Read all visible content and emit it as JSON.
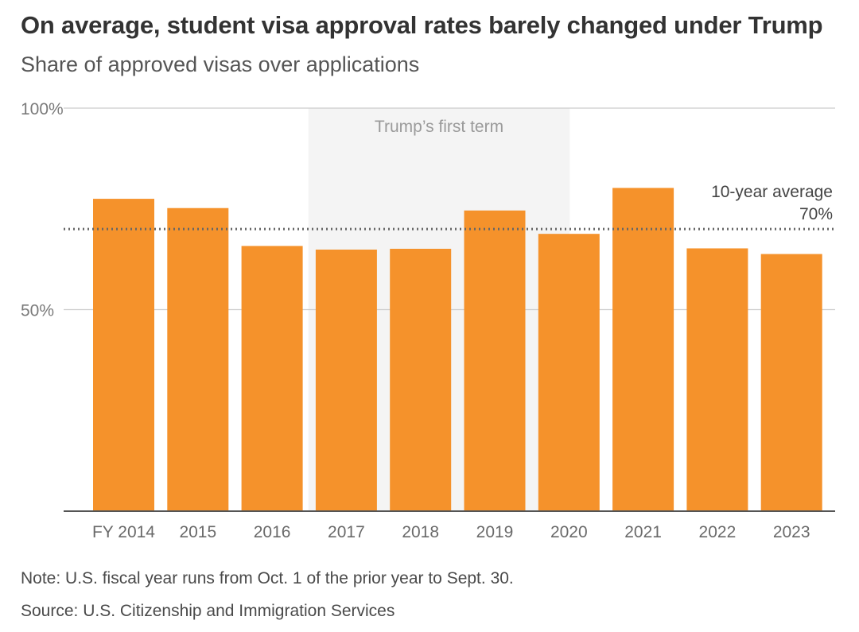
{
  "header": {
    "title": "On average, student visa approval rates barely changed under Trump",
    "subtitle": "Share of approved visas over applications"
  },
  "footer": {
    "note": "Note: U.S. fiscal year runs from Oct. 1 of the prior year to Sept. 30.",
    "source": "Source: U.S. Citizenship and Immigration Services"
  },
  "colors": {
    "bar": "#f5922b",
    "shade": "#f4f4f4",
    "grid": "#cccccc",
    "baseline": "#555555",
    "average_line": "#666666"
  },
  "chart_data": {
    "type": "bar",
    "title": "On average, student visa approval rates barely changed under Trump",
    "subtitle": "Share of approved visas over applications",
    "xlabel": "",
    "ylabel": "",
    "categories": [
      "FY 2014",
      "2015",
      "2016",
      "2017",
      "2018",
      "2019",
      "2020",
      "2021",
      "2022",
      "2023"
    ],
    "values": [
      77.5,
      75.2,
      65.8,
      64.9,
      65.1,
      74.6,
      68.8,
      80.2,
      65.2,
      63.8
    ],
    "ylim": [
      0,
      100
    ],
    "yticks": [
      50,
      100
    ],
    "ytick_labels": [
      "50%",
      "100%"
    ],
    "grid": true,
    "reference_line": {
      "value": 70,
      "label": "10-year average",
      "value_label": "70%"
    },
    "shaded_region": {
      "from": "2017",
      "to": "2020",
      "label": "Trump’s first term"
    }
  }
}
